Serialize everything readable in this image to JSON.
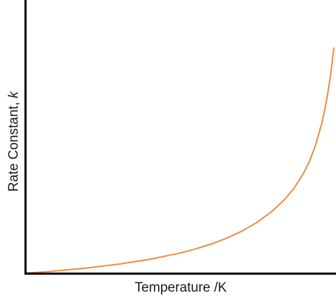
{
  "chart_data": {
    "type": "line",
    "title": "",
    "xlabel": "Temperature /K",
    "ylabel_main": "Rate Constant, ",
    "ylabel_symbol": "k",
    "grid": false,
    "legend": "none",
    "x_ticks": [],
    "y_ticks": [],
    "xlim": [
      0,
      1
    ],
    "ylim": [
      0,
      1
    ],
    "series": [
      {
        "color": "#f08a43",
        "x": [
          0.0,
          0.1,
          0.2,
          0.3,
          0.4,
          0.5,
          0.55,
          0.6,
          0.65,
          0.7,
          0.75,
          0.8,
          0.84,
          0.87,
          0.9,
          0.92,
          0.94,
          0.96,
          0.97,
          0.98,
          0.99,
          1.0
        ],
        "y": [
          0.0,
          0.0087,
          0.0195,
          0.0331,
          0.0505,
          0.0737,
          0.0886,
          0.1062,
          0.1274,
          0.1533,
          0.1857,
          0.2274,
          0.2697,
          0.3103,
          0.3628,
          0.4078,
          0.4665,
          0.5453,
          0.596,
          0.6568,
          0.7311,
          0.8244
        ]
      }
    ],
    "axis_color": "#000000"
  }
}
